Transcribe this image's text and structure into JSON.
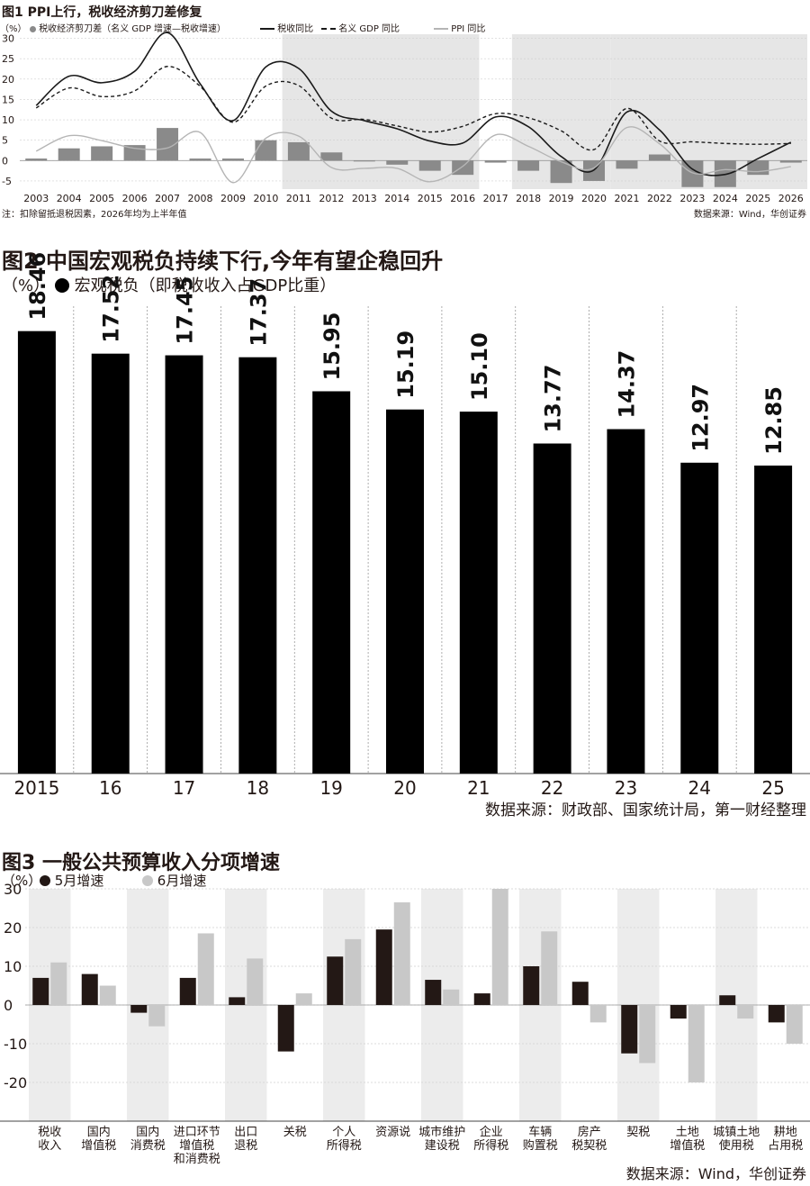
{
  "chart1": {
    "title": "图1 PPI上行，税收经济剪刀差修复",
    "unit": "（%）",
    "legend": [
      {
        "label": "税收经济剪刀差（名义 GDP 增速—税收增速）",
        "style": "bar"
      },
      {
        "label": "税收同比",
        "style": "solid"
      },
      {
        "label": "名义 GDP 同比",
        "style": "dashed"
      },
      {
        "label": "PPI 同比",
        "style": "gray"
      }
    ],
    "note": "注：扣除留抵退税因素，2026年均为上半年值",
    "source": "数据来源：Wind，华创证券",
    "yticks": [
      "30",
      "25",
      "20",
      "15",
      "10",
      "5",
      "0",
      "-5"
    ],
    "ylim": [
      -7,
      31
    ],
    "shaded_years": [
      [
        "2011",
        "2016"
      ],
      [
        "2018",
        "2020"
      ],
      [
        "2021",
        "2026"
      ]
    ],
    "colors": {
      "bar": "#8a8a8a",
      "shade": "#e6e6e6",
      "line": "#1a1a1a",
      "ppi": "#b5b5b5"
    }
  },
  "chart2": {
    "title": "图2 中国宏观税负持续下行,今年有望企稳回升",
    "unit": "（%）",
    "legend_label": "宏观税负（即税收收入占GDP比重）",
    "source": "数据来源：财政部、国家统计局，第一财经整理",
    "ylim": [
      0,
      20
    ]
  },
  "chart3": {
    "title": "图3 一般公共预算收入分项增速",
    "unit": "（%）",
    "legend": [
      {
        "label": "5月增速",
        "color": "#231815"
      },
      {
        "label": "6月增速",
        "color": "#c8c8c8"
      }
    ],
    "source": "数据来源：Wind，华创证券",
    "yticks": [
      "30",
      "20",
      "10",
      "0",
      "-10",
      "-20"
    ],
    "ylim": [
      -30,
      30
    ]
  },
  "chart_data": [
    {
      "type": "bar",
      "categories": [
        "2003",
        "2004",
        "2005",
        "2006",
        "2007",
        "2008",
        "2009",
        "2010",
        "2011",
        "2012",
        "2013",
        "2014",
        "2015",
        "2016",
        "2017",
        "2018",
        "2019",
        "2020",
        "2021",
        "2022",
        "2023",
        "2024",
        "2025",
        "2026"
      ],
      "title": "图1 PPI上行，税收经济剪刀差修复",
      "xlabel": "",
      "ylabel": "（%）",
      "ylim": [
        -7,
        31
      ],
      "series": [
        {
          "name": "税收经济剪刀差（名义 GDP 增速—税收增速）",
          "type": "bar",
          "values": [
            0.5,
            3,
            3.5,
            3.8,
            8,
            0.5,
            0.5,
            5,
            4.5,
            2,
            0,
            -1,
            -2.5,
            -3.5,
            -0.5,
            -2.5,
            -5.5,
            -5,
            -2,
            1.5,
            -6.5,
            -6.5,
            -3.5,
            -0.5
          ]
        },
        {
          "name": "税收同比",
          "type": "line",
          "values": [
            13.5,
            20.7,
            19.1,
            21.9,
            31.4,
            18.8,
            9.8,
            23.0,
            22.6,
            12.1,
            9.8,
            7.8,
            4.8,
            4.3,
            10.7,
            8.3,
            1.0,
            -2.3,
            11.9,
            7.5,
            -2.1,
            -3.4,
            0.5,
            4.5
          ]
        },
        {
          "name": "名义 GDP 同比",
          "type": "line",
          "values": [
            12.9,
            17.8,
            15.7,
            17.1,
            23.1,
            18.2,
            9.4,
            18.3,
            18.4,
            10.4,
            10.1,
            8.5,
            7.0,
            8.4,
            11.5,
            10.5,
            7.3,
            2.7,
            12.8,
            4.8,
            4.6,
            4.2,
            4.0,
            4.2
          ]
        },
        {
          "name": "PPI 同比",
          "type": "line",
          "values": [
            2.3,
            6.1,
            4.9,
            3.0,
            3.1,
            6.9,
            -5.4,
            5.5,
            6.0,
            -1.7,
            -1.9,
            -1.9,
            -5.2,
            -1.4,
            6.3,
            3.5,
            -0.3,
            -1.8,
            8.1,
            4.1,
            -3.0,
            -2.2,
            -2.7,
            -1.5
          ]
        }
      ]
    },
    {
      "type": "bar",
      "categories": [
        "2015",
        "16",
        "17",
        "18",
        "19",
        "20",
        "21",
        "22",
        "23",
        "24",
        "25"
      ],
      "values": [
        18.46,
        17.52,
        17.45,
        17.37,
        15.95,
        15.19,
        15.1,
        13.77,
        14.37,
        12.97,
        12.85
      ],
      "value_labels": [
        "18.46",
        "17.52",
        "17.45",
        "17.37",
        "15.95",
        "15.19",
        "15.10",
        "13.77",
        "14.37",
        "12.97",
        "12.85"
      ],
      "title": "图2 中国宏观税负持续下行,今年有望企稳回升",
      "xlabel": "",
      "ylabel": "（%）",
      "series_name": "宏观税负（即税收收入占GDP比重）",
      "ylim": [
        0,
        20
      ]
    },
    {
      "type": "bar",
      "categories": [
        [
          "税收",
          "收入"
        ],
        [
          "国内",
          "增值税"
        ],
        [
          "国内",
          "消费税"
        ],
        [
          "进口环节",
          "增值税",
          "和消费税"
        ],
        [
          "出口",
          "退税"
        ],
        [
          "关税"
        ],
        [
          "个人",
          "所得税"
        ],
        [
          "资源说"
        ],
        [
          "城市维护",
          "建设税"
        ],
        [
          "企业",
          "所得税"
        ],
        [
          "车辆",
          "购置税"
        ],
        [
          "房产",
          "税契税"
        ],
        [
          "契税"
        ],
        [
          "土地",
          "增值税"
        ],
        [
          "城镇土地",
          "使用税"
        ],
        [
          "耕地",
          "占用税"
        ]
      ],
      "title": "图3 一般公共预算收入分项增速",
      "xlabel": "",
      "ylabel": "（%）",
      "ylim": [
        -30,
        30
      ],
      "series": [
        {
          "name": "5月增速",
          "values": [
            7,
            8,
            -2,
            7,
            2,
            -12,
            12.5,
            19.5,
            6.5,
            3,
            10,
            6,
            -12.5,
            -3.5,
            2.5,
            -4.5
          ]
        },
        {
          "name": "6月增速",
          "values": [
            11,
            5,
            -5.5,
            18.5,
            12,
            3,
            17,
            26.5,
            4,
            30,
            19,
            -4.5,
            -15,
            -20,
            -3.5,
            -10
          ]
        }
      ]
    }
  ]
}
